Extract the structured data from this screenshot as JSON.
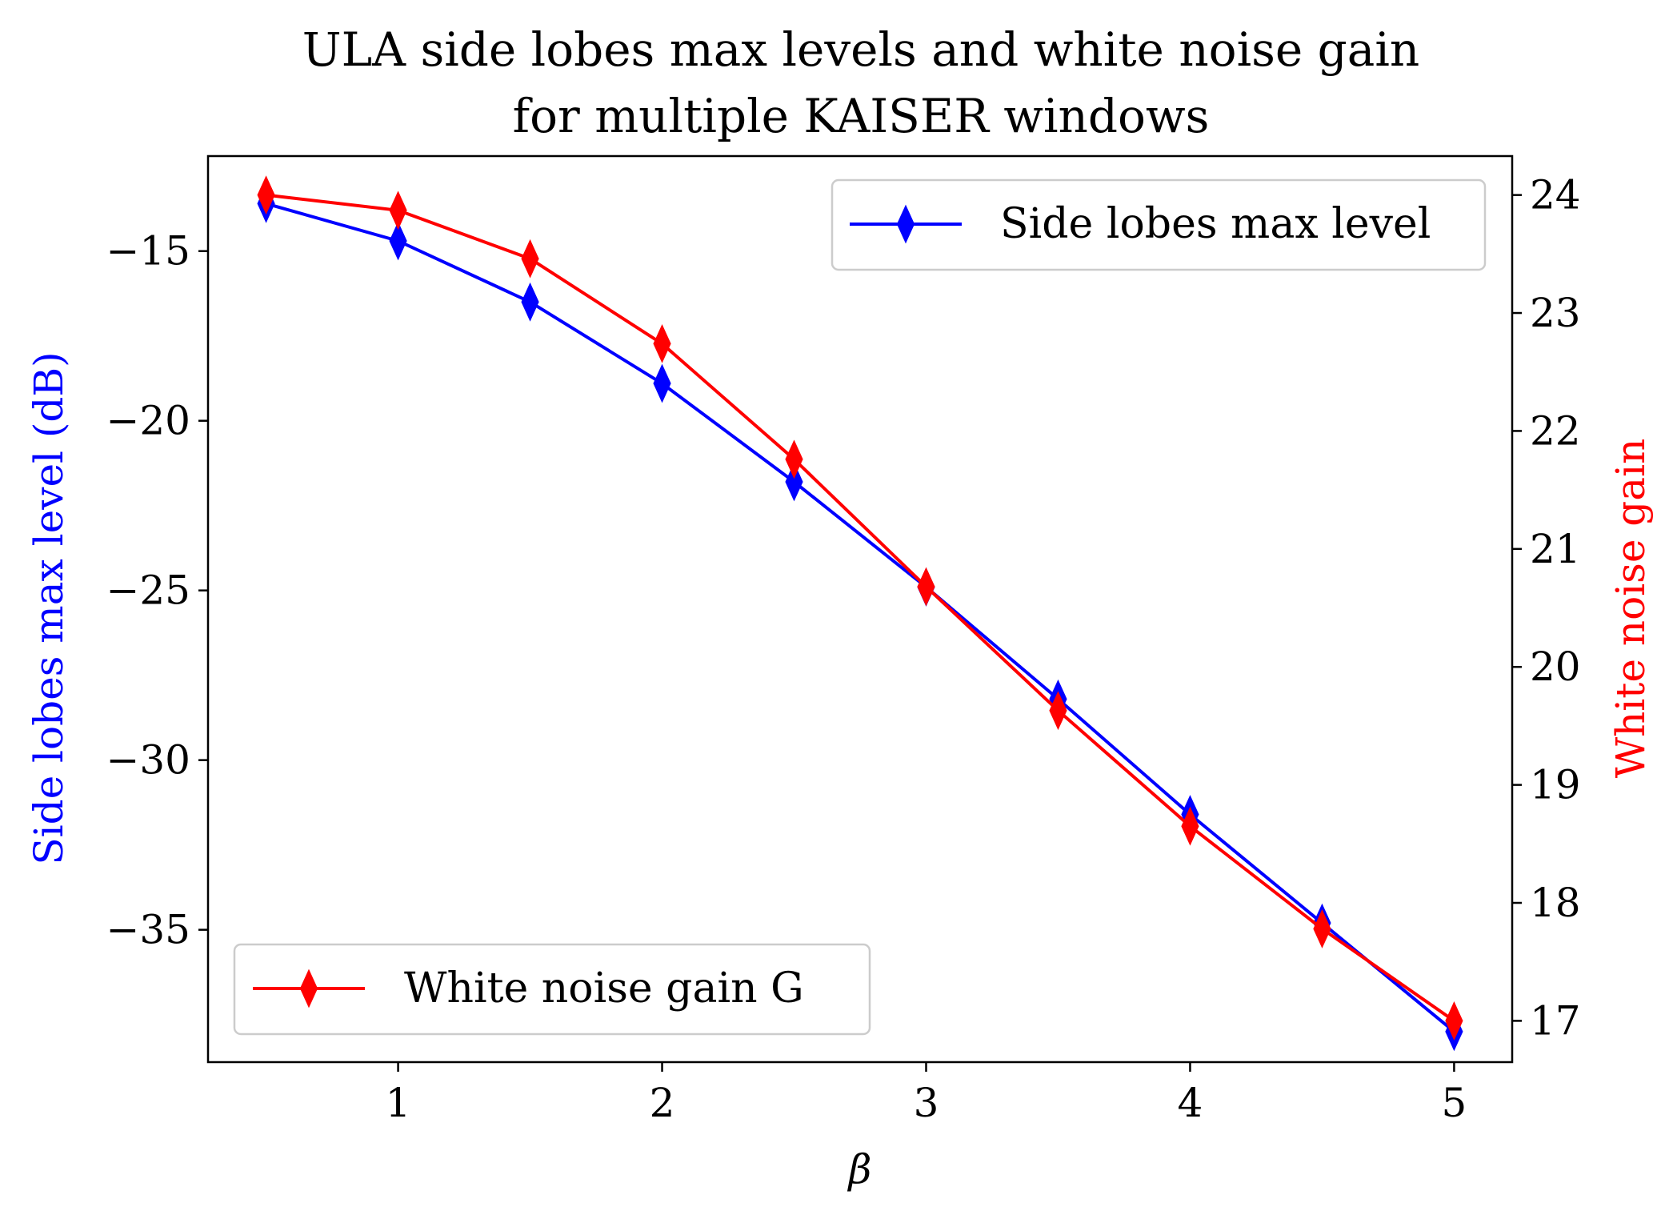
{
  "chart_data": {
    "type": "line",
    "title_line1": "ULA side lobes max levels and white noise gain",
    "title_line2": "for multiple KAISER windows",
    "xlabel": "β",
    "ylabel_left": "Side lobes max level (dB)",
    "ylabel_right": "White noise gain",
    "x": [
      0.5,
      1.0,
      1.5,
      2.0,
      2.5,
      3.0,
      3.5,
      4.0,
      4.5,
      5.0
    ],
    "xticks": [
      1,
      2,
      3,
      4,
      5
    ],
    "xlim": [
      0.28,
      5.22
    ],
    "yticks_left": [
      -15,
      -20,
      -25,
      -30,
      -35
    ],
    "ytick_labels_left": [
      "−15",
      "−20",
      "−25",
      "−30",
      "−35"
    ],
    "ylim_left": [
      -38.9,
      -12.2
    ],
    "yticks_right": [
      17,
      18,
      19,
      20,
      21,
      22,
      23,
      24
    ],
    "ylim_right": [
      16.65,
      24.33
    ],
    "series": [
      {
        "name": "Side lobes max level",
        "axis": "left",
        "color": "#0000ff",
        "marker": "thin_diamond",
        "values": [
          -13.6,
          -14.7,
          -16.5,
          -18.9,
          -21.8,
          -24.9,
          -28.2,
          -31.6,
          -34.8,
          -38.0
        ]
      },
      {
        "name": "White noise gain G",
        "axis": "right",
        "color": "#ff0000",
        "marker": "thin_diamond",
        "values": [
          24.0,
          23.87,
          23.46,
          22.74,
          21.76,
          20.68,
          19.63,
          18.65,
          17.78,
          17.0
        ]
      }
    ],
    "legend_top_right": "Side lobes max level",
    "legend_bottom_left": "White noise gain G",
    "grid": false
  }
}
